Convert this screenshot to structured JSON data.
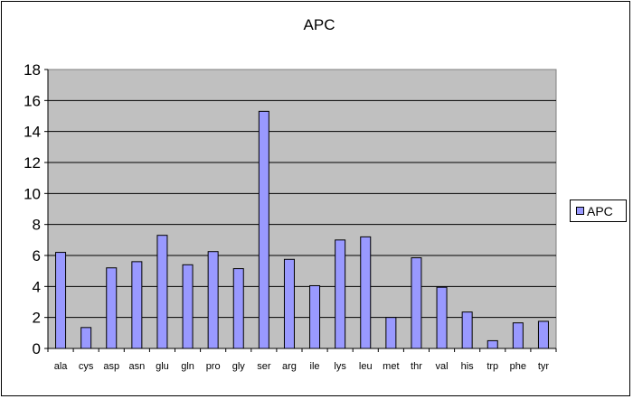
{
  "chart_data": {
    "type": "bar",
    "title": "APC",
    "xlabel": "",
    "ylabel": "",
    "categories": [
      "ala",
      "cys",
      "asp",
      "asn",
      "glu",
      "gln",
      "pro",
      "gly",
      "ser",
      "arg",
      "ile",
      "lys",
      "leu",
      "met",
      "thr",
      "val",
      "his",
      "trp",
      "phe",
      "tyr"
    ],
    "series": [
      {
        "name": "APC",
        "values": [
          6.2,
          1.35,
          5.2,
          5.6,
          7.3,
          5.4,
          6.25,
          5.15,
          15.3,
          5.75,
          4.05,
          7.0,
          7.2,
          2.0,
          5.85,
          3.95,
          2.35,
          0.5,
          1.65,
          1.75
        ]
      }
    ],
    "ylim": [
      0,
      18
    ],
    "yticks": [
      0,
      2,
      4,
      6,
      8,
      10,
      12,
      14,
      16,
      18
    ],
    "grid": true,
    "legend_position": "right",
    "colors": {
      "bar_fill": "#9999ff",
      "bar_stroke": "#000000",
      "plot_background": "#c0c0c0",
      "gridline": "#000000"
    }
  }
}
